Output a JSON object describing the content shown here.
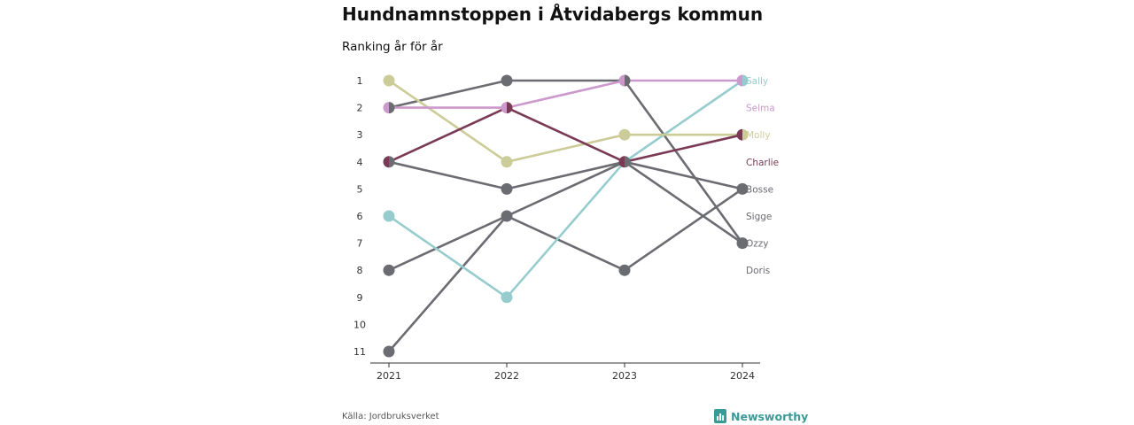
{
  "title": "Hundnamnstoppen i Åtvidabergs kommun",
  "subtitle": "Ranking år för år",
  "source": "Källa: Jordbruksverket",
  "brand": "Newsworthy",
  "colors": {
    "grey": "#6b6b72",
    "Sally": "#96ccce",
    "Selma": "#cc99cc",
    "Molly": "#cccc99",
    "Charlie": "#7a3a55",
    "brand": "#3a9a96"
  },
  "chart_data": {
    "type": "line",
    "variant": "bump",
    "x": [
      "2021",
      "2022",
      "2023",
      "2024"
    ],
    "y_ticks": [
      "1",
      "2",
      "3",
      "4",
      "5",
      "6",
      "7",
      "8",
      "9",
      "10",
      "11"
    ],
    "ylim": [
      1,
      11
    ],
    "y_inverted": true,
    "series": [
      {
        "name": "Doris",
        "values": [
          11,
          6,
          8,
          5
        ]
      },
      {
        "name": "Sigge",
        "values": [
          8,
          6,
          4,
          7
        ]
      },
      {
        "name": "Bosse",
        "values": [
          4,
          5,
          4,
          5
        ]
      },
      {
        "name": "Ozzy",
        "values": [
          2,
          1,
          1,
          7
        ]
      },
      {
        "name": "Sally",
        "values": [
          6,
          9,
          4,
          1
        ]
      },
      {
        "name": "Molly",
        "values": [
          1,
          4,
          3,
          3
        ]
      },
      {
        "name": "Charlie",
        "values": [
          4,
          2,
          4,
          3
        ]
      },
      {
        "name": "Selma",
        "values": [
          2,
          2,
          1,
          1
        ]
      }
    ],
    "end_labels": [
      "Sally",
      "Selma",
      "Molly",
      "Charlie",
      "Bosse",
      "Sigge",
      "Ozzy",
      "Doris"
    ]
  }
}
